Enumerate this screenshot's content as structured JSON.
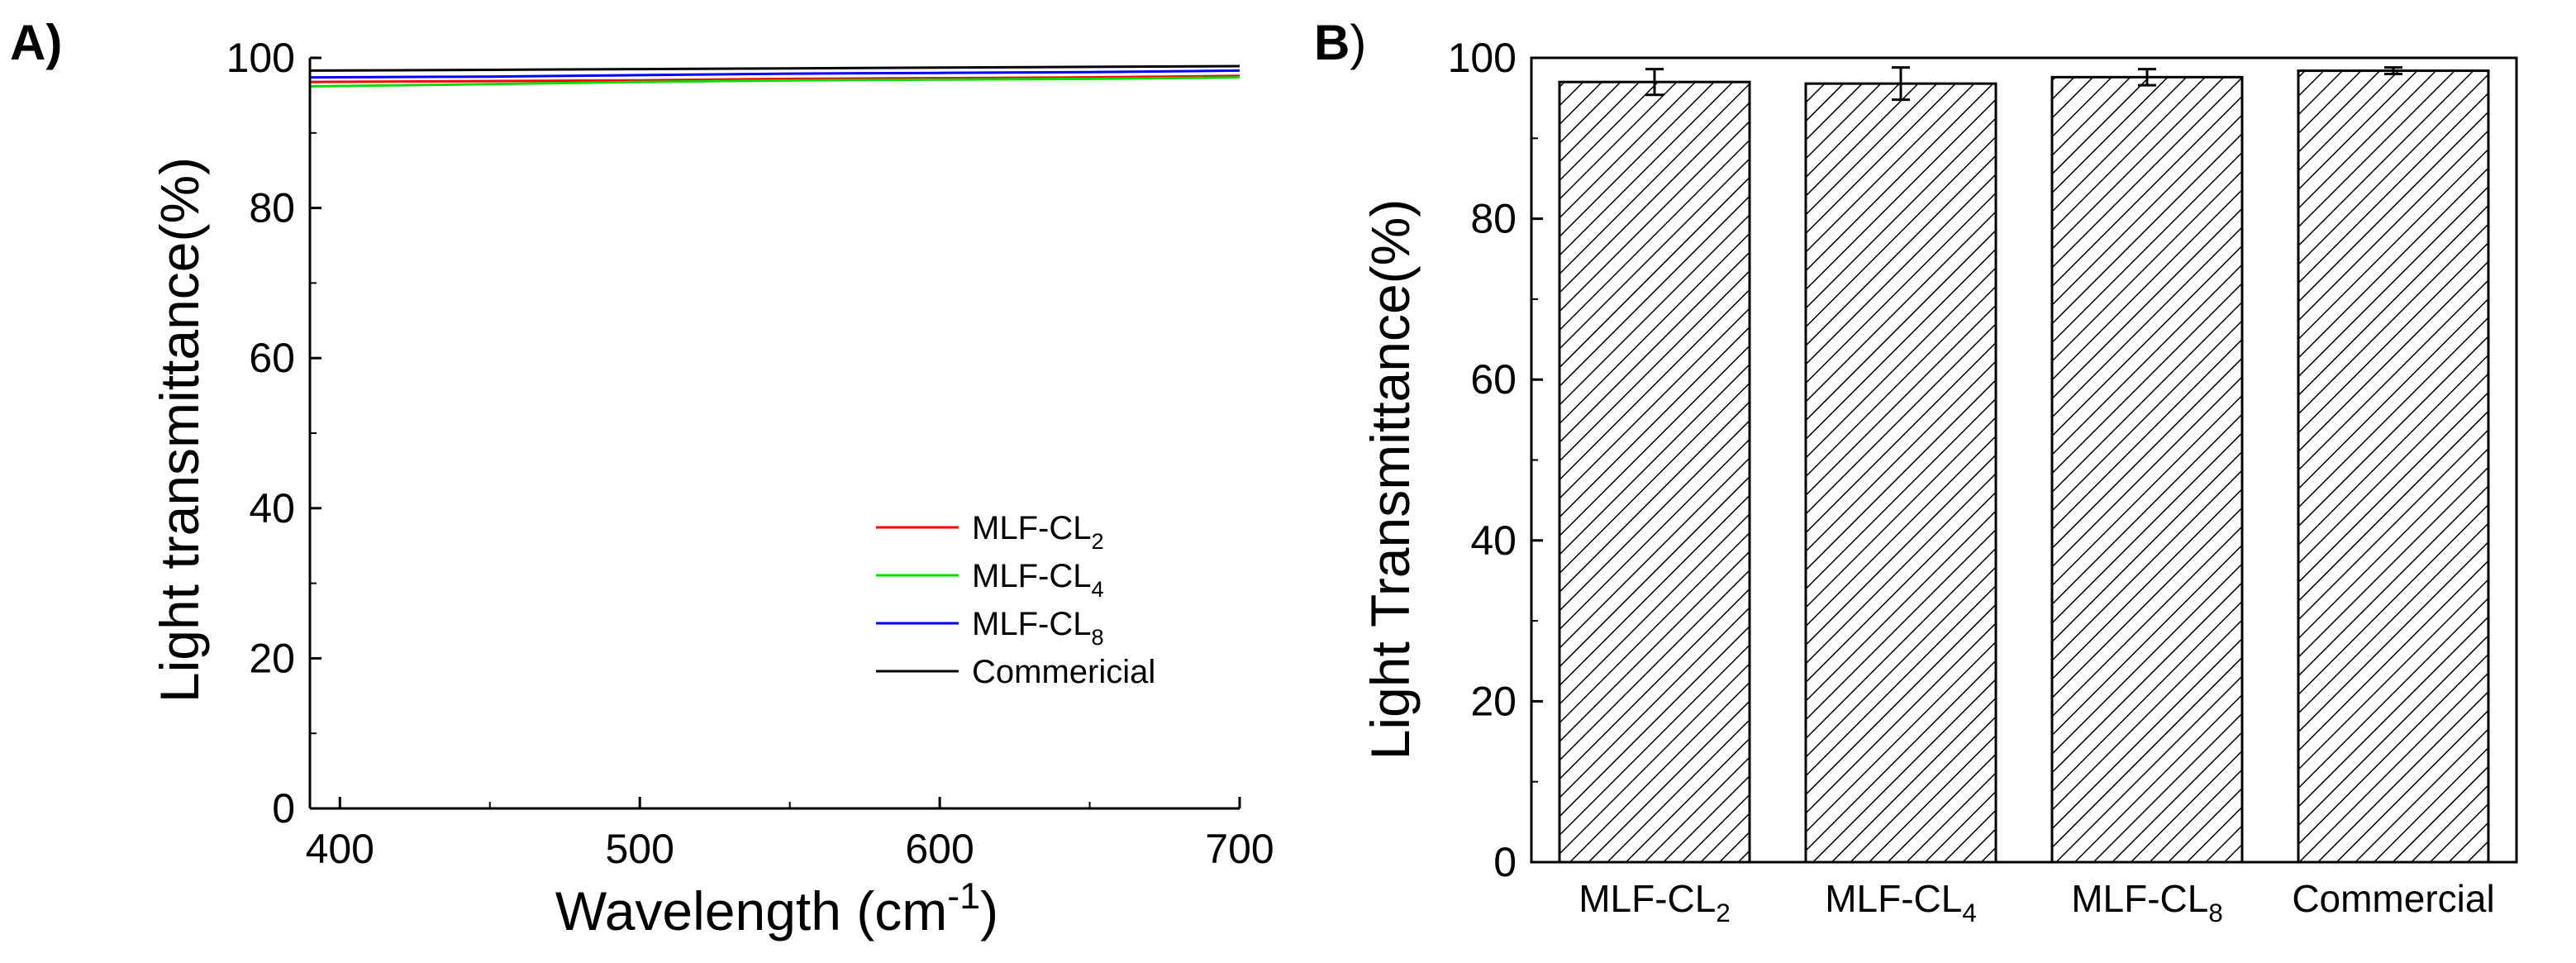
{
  "chart_data": [
    {
      "type": "line",
      "panel_label": "A)",
      "xlabel": "Wavelength (cm",
      "xlabel_sup": "-1",
      "xlabel_end": ")",
      "ylabel": "Light transmittance(%)",
      "xlim": [
        390,
        700
      ],
      "ylim": [
        0,
        100
      ],
      "xticks": [
        400,
        500,
        600,
        700
      ],
      "yticks": [
        0,
        20,
        40,
        60,
        80,
        100
      ],
      "grid": false,
      "legend_position": "lower-right",
      "series": [
        {
          "name": "MLF-CL",
          "sub": "2",
          "color": "#ff0000",
          "x": [
            390,
            450,
            500,
            550,
            600,
            650,
            700
          ],
          "y": [
            96.8,
            96.9,
            97.0,
            97.2,
            97.3,
            97.4,
            97.6
          ]
        },
        {
          "name": "MLF-CL",
          "sub": "4",
          "color": "#00dd00",
          "x": [
            390,
            450,
            500,
            550,
            600,
            650,
            700
          ],
          "y": [
            96.2,
            96.5,
            96.8,
            97.0,
            97.1,
            97.2,
            97.4
          ]
        },
        {
          "name": "MLF-CL",
          "sub": "8",
          "color": "#0000ff",
          "x": [
            390,
            450,
            500,
            550,
            600,
            650,
            700
          ],
          "y": [
            97.4,
            97.5,
            97.7,
            97.9,
            98.0,
            98.1,
            98.3
          ]
        },
        {
          "name": "Commericial",
          "sub": "",
          "color": "#000000",
          "x": [
            390,
            450,
            500,
            550,
            600,
            650,
            700
          ],
          "y": [
            98.3,
            98.4,
            98.5,
            98.6,
            98.7,
            98.8,
            98.9
          ]
        }
      ]
    },
    {
      "type": "bar",
      "panel_label": "B",
      "panel_label_end": ")",
      "ylabel": "Light Transmittance(%)",
      "ylim": [
        0,
        100
      ],
      "yticks": [
        0,
        20,
        40,
        60,
        80,
        100
      ],
      "grid": false,
      "pattern": "diagonal-hatch",
      "categories": [
        {
          "name": "MLF-CL",
          "sub": "2"
        },
        {
          "name": "MLF-CL",
          "sub": "4"
        },
        {
          "name": "MLF-CL",
          "sub": "8"
        },
        {
          "name": "Commercial",
          "sub": ""
        }
      ],
      "values": [
        97.0,
        96.8,
        97.6,
        98.4
      ],
      "errors": [
        1.6,
        2.0,
        1.0,
        0.4
      ]
    }
  ]
}
